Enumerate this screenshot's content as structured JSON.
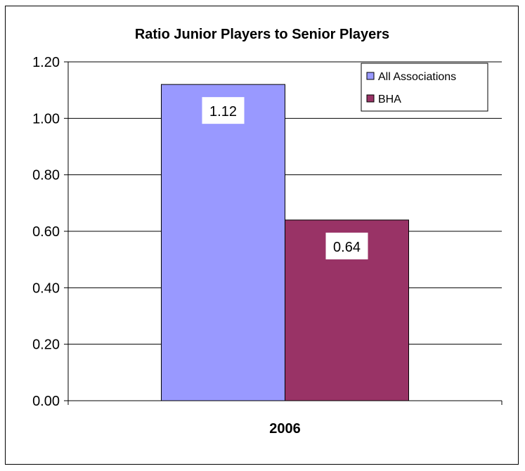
{
  "chart_data": {
    "type": "bar",
    "title": "Ratio Junior Players to Senior Players",
    "categories": [
      "2006"
    ],
    "series": [
      {
        "name": "All Associations",
        "values": [
          1.12
        ],
        "color": "#9999ff",
        "data_label": "1.12"
      },
      {
        "name": "BHA",
        "values": [
          0.64
        ],
        "color": "#993366",
        "data_label": "0.64"
      }
    ],
    "xlabel": "",
    "ylabel": "",
    "ylim": [
      0,
      1.2
    ],
    "yticks": [
      "0.00",
      "0.20",
      "0.40",
      "0.60",
      "0.80",
      "1.00",
      "1.20"
    ],
    "ytick_values": [
      0,
      0.2,
      0.4,
      0.6,
      0.8,
      1.0,
      1.2
    ],
    "grid": true,
    "legend_position": "top-right"
  }
}
